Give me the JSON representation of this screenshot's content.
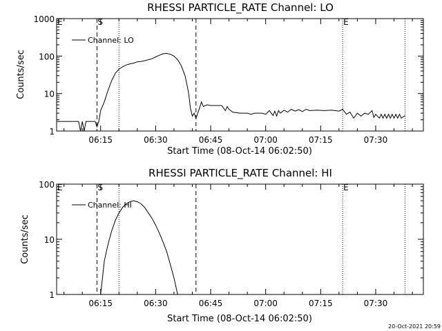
{
  "footer": {
    "timestamp": "20-Oct-2021 20:59"
  },
  "chart_data": [
    {
      "type": "line",
      "title": "RHESSI PARTICLE_RATE Channel: LO",
      "xlabel": "Start Time (08-Oct-14 06:02:50)",
      "ylabel": "Counts/sec",
      "y_scale": "log",
      "ylim": [
        1,
        1000
      ],
      "y_ticks": [
        "1",
        "10",
        "100",
        "1000"
      ],
      "xlim": [
        "06:03:00",
        "07:43:00"
      ],
      "x_ticks": [
        "06:15",
        "06:30",
        "06:45",
        "07:00",
        "07:15",
        "07:30"
      ],
      "legend": {
        "entries": [
          "Channel: LO"
        ],
        "placement": "top-left"
      },
      "markers": [
        {
          "label": "S",
          "time": "06:14:00",
          "style": "dashed"
        },
        {
          "label": "",
          "time": "06:20:00",
          "style": "dotted"
        },
        {
          "label": "",
          "time": "06:41:00",
          "style": "dashed"
        },
        {
          "label": "E",
          "time": "07:21:00",
          "style": "dotted"
        },
        {
          "label": "",
          "time": "07:38:00",
          "style": "dotted"
        }
      ],
      "corner_label": "E",
      "series": [
        {
          "name": "Channel: LO",
          "points": [
            [
              "06:03:00",
              1.8
            ],
            [
              "06:09:00",
              1.8
            ],
            [
              "06:09:30",
              1.0
            ],
            [
              "06:10:00",
              1.8
            ],
            [
              "06:10:30",
              1.0
            ],
            [
              "06:11:00",
              1.8
            ],
            [
              "06:13:30",
              1.8
            ],
            [
              "06:14:00",
              1.3
            ],
            [
              "06:14:30",
              1.8
            ],
            [
              "06:15:00",
              3.5
            ],
            [
              "06:16:00",
              6
            ],
            [
              "06:17:00",
              12
            ],
            [
              "06:18:00",
              22
            ],
            [
              "06:19:00",
              35
            ],
            [
              "06:20:00",
              45
            ],
            [
              "06:21:00",
              52
            ],
            [
              "06:22:00",
              58
            ],
            [
              "06:23:00",
              62
            ],
            [
              "06:24:00",
              65
            ],
            [
              "06:25:00",
              70
            ],
            [
              "06:26:00",
              72
            ],
            [
              "06:27:00",
              75
            ],
            [
              "06:28:00",
              80
            ],
            [
              "06:29:00",
              85
            ],
            [
              "06:30:00",
              95
            ],
            [
              "06:31:00",
              105
            ],
            [
              "06:32:00",
              115
            ],
            [
              "06:33:00",
              118
            ],
            [
              "06:34:00",
              112
            ],
            [
              "06:35:00",
              100
            ],
            [
              "06:36:00",
              80
            ],
            [
              "06:37:00",
              55
            ],
            [
              "06:38:00",
              30
            ],
            [
              "06:38:30",
              18
            ],
            [
              "06:39:00",
              10
            ],
            [
              "06:39:30",
              4
            ],
            [
              "06:40:00",
              2.5
            ],
            [
              "06:40:30",
              3
            ],
            [
              "06:41:00",
              2.2
            ],
            [
              "06:42:00",
              4.2
            ],
            [
              "06:42:30",
              6
            ],
            [
              "06:43:00",
              4.5
            ],
            [
              "06:44:00",
              5
            ],
            [
              "06:45:00",
              4.8
            ],
            [
              "06:48:00",
              4.8
            ],
            [
              "06:49:00",
              3.5
            ],
            [
              "06:49:30",
              4.5
            ],
            [
              "06:50:00",
              3.8
            ],
            [
              "06:51:00",
              3.2
            ],
            [
              "06:53:00",
              3.0
            ],
            [
              "06:55:00",
              3.0
            ],
            [
              "06:56:00",
              2.8
            ],
            [
              "06:57:00",
              3.0
            ],
            [
              "06:59:00",
              3.0
            ],
            [
              "07:00:00",
              2.8
            ],
            [
              "07:01:00",
              3.5
            ],
            [
              "07:02:00",
              2.6
            ],
            [
              "07:02:30",
              3.4
            ],
            [
              "07:03:00",
              2.5
            ],
            [
              "07:03:30",
              3.5
            ],
            [
              "07:04:00",
              3.0
            ],
            [
              "07:05:00",
              3.6
            ],
            [
              "07:06:00",
              3.2
            ],
            [
              "07:07:00",
              3.8
            ],
            [
              "07:08:00",
              3.4
            ],
            [
              "07:09:00",
              3.7
            ],
            [
              "07:10:00",
              3.3
            ],
            [
              "07:11:00",
              3.8
            ],
            [
              "07:12:00",
              3.5
            ],
            [
              "07:14:00",
              3.6
            ],
            [
              "07:16:00",
              3.5
            ],
            [
              "07:18:00",
              3.6
            ],
            [
              "07:20:00",
              3.4
            ],
            [
              "07:21:00",
              3.8
            ],
            [
              "07:22:00",
              2.8
            ],
            [
              "07:23:00",
              3.2
            ],
            [
              "07:24:00",
              2.2
            ],
            [
              "07:25:00",
              3.0
            ],
            [
              "07:26:00",
              2.5
            ],
            [
              "07:27:00",
              3.0
            ],
            [
              "07:28:00",
              2.8
            ],
            [
              "07:29:00",
              3.5
            ],
            [
              "07:29:30",
              2.3
            ],
            [
              "07:30:00",
              2.8
            ],
            [
              "07:31:00",
              2.2
            ],
            [
              "07:31:30",
              2.8
            ],
            [
              "07:32:00",
              2.2
            ],
            [
              "07:32:30",
              2.8
            ],
            [
              "07:33:00",
              2.2
            ],
            [
              "07:33:30",
              2.8
            ],
            [
              "07:34:00",
              2.2
            ],
            [
              "07:34:30",
              2.8
            ],
            [
              "07:35:00",
              2.2
            ],
            [
              "07:35:30",
              2.8
            ],
            [
              "07:36:00",
              2.2
            ],
            [
              "07:36:30",
              2.8
            ],
            [
              "07:37:00",
              2.2
            ],
            [
              "07:38:00",
              2.6
            ]
          ]
        }
      ]
    },
    {
      "type": "line",
      "title": "RHESSI PARTICLE_RATE Channel: HI",
      "xlabel": "Start Time (08-Oct-14 06:02:50)",
      "ylabel": "Counts/sec",
      "y_scale": "log",
      "ylim": [
        1,
        100
      ],
      "y_ticks": [
        "1",
        "10",
        "100"
      ],
      "xlim": [
        "06:03:00",
        "07:43:00"
      ],
      "x_ticks": [
        "06:15",
        "06:30",
        "06:45",
        "07:00",
        "07:15",
        "07:30"
      ],
      "legend": {
        "entries": [
          "Channel: HI"
        ],
        "placement": "top-left"
      },
      "markers": [
        {
          "label": "S",
          "time": "06:14:00",
          "style": "dashed"
        },
        {
          "label": "",
          "time": "06:20:00",
          "style": "dotted"
        },
        {
          "label": "",
          "time": "06:41:00",
          "style": "dashed"
        },
        {
          "label": "E",
          "time": "07:21:00",
          "style": "dotted"
        },
        {
          "label": "",
          "time": "07:38:00",
          "style": "dotted"
        }
      ],
      "corner_label": "E",
      "series": [
        {
          "name": "Channel: HI",
          "points": [
            [
              "06:15:00",
              1.0
            ],
            [
              "06:15:30",
              2
            ],
            [
              "06:16:00",
              4
            ],
            [
              "06:17:00",
              8
            ],
            [
              "06:18:00",
              14
            ],
            [
              "06:19:00",
              22
            ],
            [
              "06:20:00",
              30
            ],
            [
              "06:21:00",
              38
            ],
            [
              "06:22:00",
              44
            ],
            [
              "06:23:00",
              48
            ],
            [
              "06:24:00",
              50
            ],
            [
              "06:25:00",
              48
            ],
            [
              "06:26:00",
              44
            ],
            [
              "06:27:00",
              38
            ],
            [
              "06:28:00",
              30
            ],
            [
              "06:29:00",
              24
            ],
            [
              "06:30:00",
              18
            ],
            [
              "06:31:00",
              13
            ],
            [
              "06:32:00",
              9
            ],
            [
              "06:33:00",
              6
            ],
            [
              "06:34:00",
              3.5
            ],
            [
              "06:35:00",
              2
            ],
            [
              "06:36:00",
              1.0
            ]
          ]
        }
      ]
    }
  ]
}
